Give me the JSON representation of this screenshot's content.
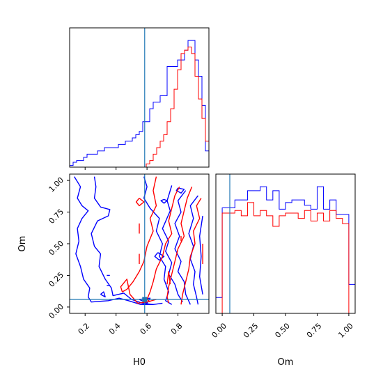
{
  "chart_data": [
    {
      "panel": "H0-marginal",
      "type": "step-histogram",
      "xlim": [
        0.1,
        1.0
      ],
      "x_ticks": [
        0.2,
        0.4,
        0.6,
        0.8
      ],
      "bin_edges": [
        0.1,
        0.1225,
        0.145,
        0.1675,
        0.19,
        0.2125,
        0.235,
        0.2575,
        0.28,
        0.3025,
        0.325,
        0.3475,
        0.37,
        0.3925,
        0.415,
        0.4375,
        0.46,
        0.4825,
        0.505,
        0.5275,
        0.55,
        0.5725,
        0.595,
        0.6175,
        0.64,
        0.6625,
        0.685,
        0.7075,
        0.73,
        0.7525,
        0.775,
        0.7975,
        0.82,
        0.8425,
        0.865,
        0.8875,
        0.91,
        0.9325,
        0.955,
        0.9775,
        1.0
      ],
      "truth_x": 0.585,
      "series": [
        {
          "color": "#0000ff",
          "counts": [
            0.5,
            1.5,
            2,
            2,
            3,
            4,
            4,
            4,
            5,
            5,
            6,
            6,
            6,
            6,
            7,
            7,
            8,
            8,
            9,
            10,
            11,
            14,
            14,
            18,
            20,
            20,
            22,
            22,
            31,
            31,
            31,
            33,
            33,
            36,
            39,
            39,
            33,
            28,
            19,
            5
          ]
        },
        {
          "color": "#ff0000",
          "counts": [
            0,
            0,
            0,
            0,
            0,
            0,
            0,
            0,
            0,
            0,
            0,
            0,
            0,
            0,
            0,
            0,
            0,
            0,
            0,
            0,
            0,
            0,
            1,
            2,
            4,
            6,
            8,
            10,
            14,
            18,
            24,
            30,
            35,
            36,
            37,
            35,
            28,
            21,
            15,
            8
          ]
        }
      ]
    },
    {
      "panel": "H0-Om-joint",
      "type": "contour",
      "xlabel": "H0",
      "ylabel": "Om",
      "xlim": [
        0.1,
        1.0
      ],
      "ylim": [
        -0.05,
        1.05
      ],
      "x_ticks": [
        0.2,
        0.4,
        0.6,
        0.8
      ],
      "y_ticks": [
        0.0,
        0.25,
        0.5,
        0.75,
        1.0
      ],
      "truth": {
        "x": 0.585,
        "y": 0.06
      },
      "series": [
        {
          "color": "#0000ff",
          "contours": [
            [
              [
                0.13,
                1.03
              ],
              [
                0.17,
                0.95
              ],
              [
                0.15,
                0.86
              ],
              [
                0.18,
                0.8
              ],
              [
                0.22,
                0.76
              ],
              [
                0.18,
                0.7
              ],
              [
                0.15,
                0.62
              ],
              [
                0.16,
                0.52
              ],
              [
                0.14,
                0.42
              ],
              [
                0.17,
                0.32
              ],
              [
                0.19,
                0.22
              ],
              [
                0.23,
                0.15
              ],
              [
                0.22,
                0.08
              ],
              [
                0.24,
                0.04
              ],
              [
                0.35,
                0.05
              ],
              [
                0.42,
                0.07
              ],
              [
                0.48,
                0.05
              ],
              [
                0.56,
                0.02
              ],
              [
                0.64,
                0.02
              ]
            ],
            [
              [
                0.26,
                1.03
              ],
              [
                0.27,
                0.95
              ],
              [
                0.26,
                0.86
              ],
              [
                0.3,
                0.79
              ],
              [
                0.36,
                0.77
              ],
              [
                0.35,
                0.72
              ],
              [
                0.28,
                0.68
              ],
              [
                0.24,
                0.58
              ],
              [
                0.26,
                0.48
              ],
              [
                0.3,
                0.42
              ],
              [
                0.29,
                0.32
              ],
              [
                0.33,
                0.22
              ],
              [
                0.37,
                0.15
              ],
              [
                0.38,
                0.09
              ],
              [
                0.45,
                0.11
              ],
              [
                0.5,
                0.06
              ],
              [
                0.57,
                0.03
              ],
              [
                0.64,
                0.02
              ],
              [
                0.7,
                0.03
              ]
            ],
            [
              [
                0.58,
                1.03
              ],
              [
                0.6,
                0.95
              ],
              [
                0.58,
                0.86
              ],
              [
                0.62,
                0.78
              ],
              [
                0.68,
                0.7
              ],
              [
                0.66,
                0.6
              ],
              [
                0.7,
                0.5
              ],
              [
                0.68,
                0.4
              ],
              [
                0.72,
                0.32
              ],
              [
                0.71,
                0.22
              ],
              [
                0.74,
                0.12
              ],
              [
                0.72,
                0.05
              ],
              [
                0.76,
                0.02
              ]
            ],
            [
              [
                0.76,
                0.96
              ],
              [
                0.73,
                0.84
              ],
              [
                0.75,
                0.76
              ],
              [
                0.7,
                0.62
              ],
              [
                0.74,
                0.52
              ],
              [
                0.72,
                0.44
              ],
              [
                0.76,
                0.35
              ],
              [
                0.74,
                0.26
              ],
              [
                0.78,
                0.18
              ],
              [
                0.8,
                0.1
              ],
              [
                0.83,
                0.04
              ]
            ],
            [
              [
                0.85,
                0.92
              ],
              [
                0.8,
                0.84
              ],
              [
                0.82,
                0.75
              ],
              [
                0.78,
                0.66
              ],
              [
                0.81,
                0.56
              ],
              [
                0.78,
                0.46
              ],
              [
                0.82,
                0.36
              ],
              [
                0.8,
                0.28
              ],
              [
                0.84,
                0.2
              ],
              [
                0.85,
                0.1
              ],
              [
                0.88,
                0.02
              ]
            ],
            [
              [
                0.93,
                0.88
              ],
              [
                0.88,
                0.8
              ],
              [
                0.9,
                0.7
              ],
              [
                0.87,
                0.58
              ],
              [
                0.9,
                0.48
              ],
              [
                0.88,
                0.38
              ],
              [
                0.91,
                0.28
              ],
              [
                0.9,
                0.18
              ],
              [
                0.92,
                0.08
              ],
              [
                0.93,
                0.02
              ]
            ],
            [
              [
                0.96,
                0.72
              ],
              [
                0.94,
                0.56
              ],
              [
                0.95,
                0.4
              ],
              [
                0.94,
                0.24
              ],
              [
                0.96,
                0.1
              ]
            ],
            [
              [
                0.34,
                0.25
              ],
              [
                0.36,
                0.25
              ]
            ],
            [
              [
                0.34,
                0.17
              ],
              [
                0.36,
                0.17
              ]
            ],
            [
              [
                0.3,
                0.1
              ],
              [
                0.32,
                0.12
              ],
              [
                0.33,
                0.08
              ],
              [
                0.3,
                0.1
              ]
            ],
            [
              [
                0.67,
                0.43
              ],
              [
                0.71,
                0.4
              ],
              [
                0.68,
                0.37
              ],
              [
                0.65,
                0.4
              ],
              [
                0.67,
                0.43
              ]
            ],
            [
              [
                0.71,
                0.85
              ],
              [
                0.73,
                0.84
              ],
              [
                0.71,
                0.82
              ],
              [
                0.69,
                0.84
              ],
              [
                0.71,
                0.85
              ]
            ],
            [
              [
                0.8,
                0.94
              ],
              [
                0.84,
                0.93
              ],
              [
                0.82,
                0.9
              ],
              [
                0.79,
                0.92
              ],
              [
                0.8,
                0.94
              ]
            ],
            [
              [
                0.55,
                0.06
              ],
              [
                0.62,
                0.07
              ],
              [
                0.6,
                0.03
              ],
              [
                0.55,
                0.06
              ]
            ]
          ]
        },
        {
          "color": "#ff0000",
          "contours": [
            [
              [
                0.66,
                1.03
              ],
              [
                0.64,
                0.92
              ],
              [
                0.66,
                0.8
              ],
              [
                0.62,
                0.7
              ],
              [
                0.64,
                0.6
              ],
              [
                0.6,
                0.48
              ],
              [
                0.58,
                0.36
              ],
              [
                0.55,
                0.28
              ],
              [
                0.51,
                0.2
              ],
              [
                0.47,
                0.14
              ],
              [
                0.44,
                0.12
              ],
              [
                0.43,
                0.16
              ],
              [
                0.47,
                0.22
              ],
              [
                0.49,
                0.1
              ],
              [
                0.54,
                0.03
              ],
              [
                0.6,
                0.04
              ],
              [
                0.66,
                0.06
              ]
            ],
            [
              [
                0.81,
                0.95
              ],
              [
                0.78,
                0.88
              ],
              [
                0.76,
                0.78
              ],
              [
                0.74,
                0.68
              ],
              [
                0.76,
                0.58
              ],
              [
                0.72,
                0.5
              ],
              [
                0.7,
                0.4
              ],
              [
                0.66,
                0.3
              ],
              [
                0.64,
                0.2
              ],
              [
                0.62,
                0.12
              ],
              [
                0.6,
                0.06
              ],
              [
                0.62,
                0.04
              ]
            ],
            [
              [
                0.89,
                0.95
              ],
              [
                0.86,
                0.86
              ],
              [
                0.84,
                0.76
              ],
              [
                0.82,
                0.66
              ],
              [
                0.84,
                0.56
              ],
              [
                0.8,
                0.46
              ],
              [
                0.78,
                0.36
              ],
              [
                0.76,
                0.26
              ],
              [
                0.74,
                0.16
              ],
              [
                0.73,
                0.08
              ],
              [
                0.74,
                0.03
              ]
            ],
            [
              [
                0.95,
                0.86
              ],
              [
                0.92,
                0.8
              ],
              [
                0.94,
                0.7
              ],
              [
                0.9,
                0.6
              ],
              [
                0.91,
                0.5
              ],
              [
                0.88,
                0.4
              ],
              [
                0.87,
                0.3
              ],
              [
                0.85,
                0.2
              ],
              [
                0.83,
                0.1
              ],
              [
                0.82,
                0.02
              ]
            ],
            [
              [
                0.55,
                0.86
              ],
              [
                0.58,
                0.83
              ],
              [
                0.55,
                0.8
              ],
              [
                0.53,
                0.83
              ],
              [
                0.55,
                0.86
              ]
            ],
            [
              [
                0.55,
                0.66
              ],
              [
                0.55,
                0.58
              ]
            ],
            [
              [
                0.55,
                0.42
              ],
              [
                0.55,
                0.34
              ]
            ],
            [
              [
                0.73,
                0.18
              ],
              [
                0.74,
                0.28
              ],
              [
                0.75,
                0.18
              ]
            ],
            [
              [
                0.82,
                0.56
              ],
              [
                0.82,
                0.52
              ]
            ],
            [
              [
                0.96,
                0.5
              ],
              [
                0.96,
                0.34
              ]
            ]
          ]
        }
      ]
    },
    {
      "panel": "Om-marginal",
      "type": "step-histogram",
      "xlabel": "Om",
      "xlim": [
        -0.05,
        1.05
      ],
      "x_ticks": [
        0.0,
        0.25,
        0.5,
        0.75,
        1.0
      ],
      "x_tick_labels": [
        "0.00",
        "0.25",
        "0.50",
        "0.75",
        "1.00"
      ],
      "bin_edges": [
        -0.05,
        0.0,
        0.05,
        0.1,
        0.15,
        0.2,
        0.25,
        0.3,
        0.35,
        0.4,
        0.45,
        0.5,
        0.55,
        0.6,
        0.65,
        0.7,
        0.75,
        0.8,
        0.85,
        0.9,
        0.95,
        1.0,
        1.05
      ],
      "truth_x": 0.06,
      "series": [
        {
          "color": "#0000ff",
          "counts": [
            0.12,
            0.8,
            0.8,
            0.86,
            0.86,
            0.93,
            0.93,
            0.96,
            0.86,
            0.93,
            0.79,
            0.84,
            0.86,
            0.86,
            0.82,
            0.79,
            0.96,
            0.79,
            0.86,
            0.75,
            0.75,
            0.22
          ]
        },
        {
          "color": "#ff0000",
          "counts": [
            0.0,
            0.76,
            0.76,
            0.78,
            0.74,
            0.84,
            0.74,
            0.78,
            0.74,
            0.66,
            0.74,
            0.76,
            0.76,
            0.72,
            0.78,
            0.7,
            0.76,
            0.7,
            0.78,
            0.72,
            0.68,
            0.0
          ]
        }
      ]
    }
  ],
  "colors": {
    "truth": "#1f77b4",
    "series_blue": "#0000ff",
    "series_red": "#ff0000"
  }
}
